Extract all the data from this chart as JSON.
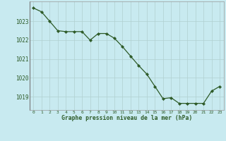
{
  "x": [
    0,
    1,
    2,
    3,
    4,
    5,
    6,
    7,
    8,
    9,
    10,
    11,
    12,
    13,
    14,
    15,
    16,
    17,
    18,
    19,
    20,
    21,
    22,
    23
  ],
  "y": [
    1023.7,
    1023.5,
    1023.0,
    1022.5,
    1022.45,
    1022.45,
    1022.45,
    1022.0,
    1022.35,
    1022.35,
    1022.1,
    1021.65,
    1021.15,
    1020.65,
    1020.2,
    1019.55,
    1018.9,
    1018.95,
    1018.65,
    1018.65,
    1018.65,
    1018.65,
    1019.3,
    1019.55
  ],
  "line_color": "#2d5a27",
  "marker_color": "#2d5a27",
  "bg_color": "#c8eaf0",
  "grid_color": "#b0d0d0",
  "plot_bg": "#c8eaf0",
  "ylabel_ticks": [
    1019,
    1020,
    1021,
    1022,
    1023
  ],
  "xlabel_label": "Graphe pression niveau de la mer (hPa)",
  "xlabel_color": "#2d5a27",
  "ylim": [
    1018.3,
    1024.05
  ],
  "xlim": [
    -0.5,
    23.5
  ],
  "title": ""
}
